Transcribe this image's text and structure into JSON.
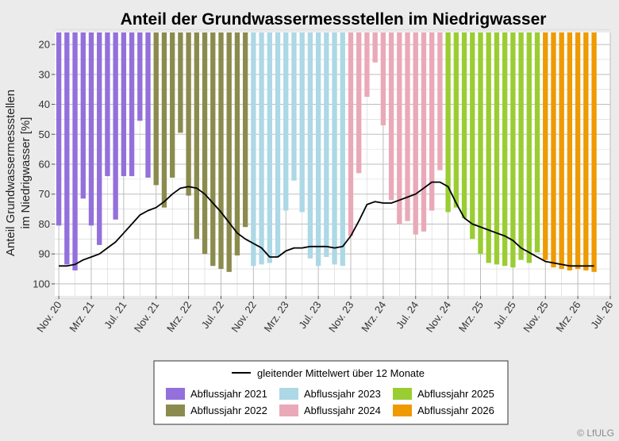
{
  "chart_data": {
    "type": "bar",
    "title": "Anteil der Grundwassermessstellen im Niedrigwasser",
    "ylabel_lines": [
      "Anteil Grundwassermessstellen",
      "im Niedrigwasser [%]"
    ],
    "ylim": [
      104,
      16
    ],
    "y_axis_reversed": true,
    "yticks": [
      20,
      30,
      40,
      50,
      60,
      70,
      80,
      90,
      100
    ],
    "x_domain": [
      -0.5,
      68
    ],
    "xticks": [
      {
        "label": "Nov. 20",
        "x": 0
      },
      {
        "label": "Mrz. 21",
        "x": 4
      },
      {
        "label": "Jul. 21",
        "x": 8
      },
      {
        "label": "Nov. 21",
        "x": 12
      },
      {
        "label": "Mrz. 22",
        "x": 16
      },
      {
        "label": "Jul. 22",
        "x": 20
      },
      {
        "label": "Nov. 22",
        "x": 24
      },
      {
        "label": "Mrz. 23",
        "x": 28
      },
      {
        "label": "Jul. 23",
        "x": 32
      },
      {
        "label": "Nov. 23",
        "x": 36
      },
      {
        "label": "Mrz. 24",
        "x": 40
      },
      {
        "label": "Jul. 24",
        "x": 44
      },
      {
        "label": "Nov. 24",
        "x": 48
      },
      {
        "label": "Mrz. 25",
        "x": 52
      },
      {
        "label": "Jul. 25",
        "x": 56
      },
      {
        "label": "Nov. 25",
        "x": 60
      },
      {
        "label": "Mrz. 26",
        "x": 64
      },
      {
        "label": "Jul. 26",
        "x": 68
      }
    ],
    "grid": true,
    "series": [
      {
        "name": "Abflussjahr 2021",
        "color": "#9370db",
        "start": 0,
        "values": [
          80.5,
          93.5,
          95.5,
          71.5,
          80.5,
          87,
          64,
          78.5,
          64,
          64,
          45.5,
          64.5
        ]
      },
      {
        "name": "Abflussjahr 2022",
        "color": "#8b8b4e",
        "start": 12,
        "values": [
          67,
          74.5,
          64.5,
          49.5,
          70.5,
          85,
          90,
          94,
          95,
          96,
          90.5,
          81
        ]
      },
      {
        "name": "Abflussjahr 2023",
        "color": "#add8e6",
        "start": 24,
        "values": [
          94,
          93.5,
          93,
          91,
          75.5,
          65.5,
          76,
          91.5,
          94,
          91,
          93.5,
          94
        ]
      },
      {
        "name": "Abflussjahr 2024",
        "color": "#eaa9b8",
        "start": 36,
        "values": [
          84,
          63,
          37.5,
          26,
          47,
          72,
          80,
          79,
          83.5,
          82.5,
          75.5,
          62
        ]
      },
      {
        "name": "Abflussjahr 2025",
        "color": "#9acd32",
        "start": 48,
        "values": [
          76,
          74.5,
          78,
          85,
          90,
          93,
          93.5,
          94,
          94.5,
          92,
          93,
          89.5
        ]
      },
      {
        "name": "Abflussjahr 2026",
        "color": "#ee9a00",
        "start": 60,
        "values": [
          92,
          94.5,
          95,
          95.5,
          95,
          95.5,
          96
        ]
      }
    ],
    "moving_average": {
      "name": "gleitender Mittelwert über 12 Monate",
      "color": "#000000",
      "x": [
        0,
        1,
        2,
        3,
        4,
        5,
        6,
        7,
        8,
        9,
        10,
        11,
        12,
        13,
        14,
        15,
        16,
        17,
        18,
        19,
        20,
        21,
        22,
        23,
        24,
        25,
        26,
        27,
        28,
        29,
        30,
        31,
        32,
        33,
        34,
        35,
        36,
        37,
        38,
        39,
        40,
        41,
        42,
        43,
        44,
        45,
        46,
        47,
        48,
        49,
        50,
        51,
        52,
        53,
        54,
        55,
        56,
        57,
        58,
        59,
        60,
        61,
        62,
        63,
        64,
        65,
        66
      ],
      "values": [
        94,
        94,
        93.5,
        92,
        91,
        90,
        88,
        86,
        83,
        80,
        77,
        75.5,
        74.5,
        72.5,
        70,
        68,
        67.5,
        68,
        70,
        73,
        76,
        79.5,
        83,
        85,
        86.5,
        88,
        91,
        91,
        89,
        88,
        88,
        87.5,
        87.5,
        87.5,
        88,
        87.5,
        84,
        79,
        73.5,
        72.5,
        73,
        73,
        72,
        71,
        70,
        68,
        66,
        66,
        67.5,
        73,
        78,
        80,
        81,
        82,
        83,
        84,
        85.5,
        88,
        89.5,
        91,
        92.5,
        93,
        93.5,
        94,
        94,
        94,
        94
      ]
    }
  },
  "legend": {
    "line_label": "gleitender Mittelwert über 12 Monate",
    "items": [
      "Abflussjahr 2021",
      "Abflussjahr 2022",
      "Abflussjahr 2023",
      "Abflussjahr 2024",
      "Abflussjahr 2025",
      "Abflussjahr 2026"
    ]
  },
  "copyright": "© LfULG"
}
